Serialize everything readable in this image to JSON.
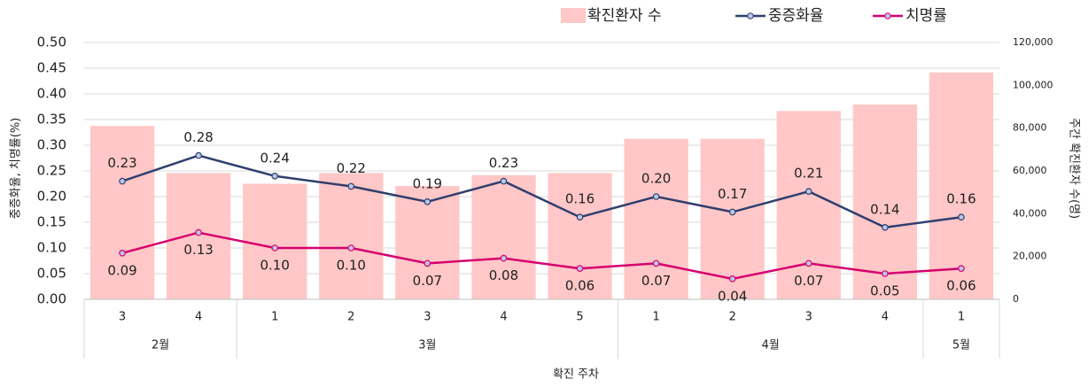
{
  "chart_data": {
    "type": "bar-line",
    "categories": [
      "3",
      "4",
      "1",
      "2",
      "3",
      "4",
      "5",
      "1",
      "2",
      "3",
      "4",
      "1"
    ],
    "groups": [
      {
        "label": "2월",
        "span": 2
      },
      {
        "label": "3월",
        "span": 5
      },
      {
        "label": "4월",
        "span": 4
      },
      {
        "label": "5월",
        "span": 1
      }
    ],
    "xlabel": "확진 주차",
    "ylabel": "중증화율, 치명률(%)",
    "y2label": "주간 확진환자 수(명)",
    "ylim": [
      0,
      0.5
    ],
    "yticks": [
      {
        "value": 0,
        "label": "0.00"
      },
      {
        "value": 0.05,
        "label": "0.05"
      },
      {
        "value": 0.1,
        "label": "0.10"
      },
      {
        "value": 0.15,
        "label": "0.15"
      },
      {
        "value": 0.2,
        "label": "0.20"
      },
      {
        "value": 0.25,
        "label": "0.25"
      },
      {
        "value": 0.3,
        "label": "0.30"
      },
      {
        "value": 0.35,
        "label": "0.35"
      },
      {
        "value": 0.4,
        "label": "0.40"
      },
      {
        "value": 0.45,
        "label": "0.45"
      },
      {
        "value": 0.5,
        "label": "0.50"
      }
    ],
    "y2lim": [
      0,
      120000
    ],
    "y2ticks": [
      0,
      {
        "value": 20000,
        "label": "20,000"
      },
      {
        "value": 40000,
        "label": "40,000"
      },
      {
        "value": 60000,
        "label": "60,000"
      },
      {
        "value": 80000,
        "label": "80,000"
      },
      {
        "value": 100000,
        "label": "100,000"
      },
      {
        "value": 120000,
        "label": "120,000"
      }
    ],
    "grid": true,
    "series": [
      {
        "name": "확진환자 수",
        "kind": "bar",
        "axis": "y2",
        "color": "#ffc7c7",
        "values": [
          81000,
          59000,
          54000,
          59000,
          53000,
          58000,
          59000,
          75000,
          75000,
          88000,
          91000,
          106000
        ]
      },
      {
        "name": "중증화율",
        "kind": "line",
        "axis": "y",
        "color": "#2f3f6e",
        "label_side": "above",
        "values": [
          0.23,
          0.28,
          0.24,
          0.22,
          0.19,
          0.23,
          0.16,
          0.2,
          0.17,
          0.21,
          0.14,
          0.16
        ],
        "value_labels": [
          "0.23",
          "0.28",
          "0.24",
          "0.22",
          "0.19",
          "0.23",
          "0.16",
          "0.20",
          "0.17",
          "0.21",
          "0.14",
          "0.16"
        ]
      },
      {
        "name": "치명률",
        "kind": "line",
        "axis": "y",
        "color": "#d6006e",
        "label_side": "below",
        "values": [
          0.09,
          0.13,
          0.1,
          0.1,
          0.07,
          0.08,
          0.06,
          0.07,
          0.04,
          0.07,
          0.05,
          0.06
        ],
        "value_labels": [
          "0.09",
          "0.13",
          "0.10",
          "0.10",
          "0.07",
          "0.08",
          "0.06",
          "0.07",
          "0.04",
          "0.07",
          "0.05",
          "0.06"
        ]
      }
    ]
  }
}
